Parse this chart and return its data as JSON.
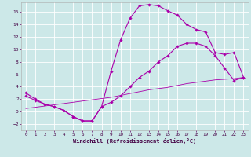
{
  "xlabel": "Windchill (Refroidissement éolien,°C)",
  "bg_color": "#cce8e8",
  "grid_color": "#ffffff",
  "line_color": "#aa00aa",
  "xlim": [
    -0.5,
    23.5
  ],
  "ylim": [
    -3.0,
    17.5
  ],
  "xticks": [
    0,
    1,
    2,
    3,
    4,
    5,
    6,
    7,
    8,
    9,
    10,
    11,
    12,
    13,
    14,
    15,
    16,
    17,
    18,
    19,
    20,
    21,
    22,
    23
  ],
  "yticks": [
    -2,
    0,
    2,
    4,
    6,
    8,
    10,
    12,
    14,
    16
  ],
  "line1_x": [
    0,
    1,
    2,
    3,
    4,
    5,
    6,
    7,
    8,
    9,
    10,
    11,
    12,
    13,
    14,
    15,
    16,
    17,
    18,
    19,
    20,
    21,
    22,
    23
  ],
  "line1_y": [
    3,
    2,
    1.2,
    0.8,
    0.2,
    -0.8,
    -1.5,
    -1.5,
    0.8,
    6.5,
    11.5,
    15.0,
    17.0,
    17.2,
    17.0,
    16.2,
    15.5,
    14.0,
    13.2,
    12.8,
    9.5,
    9.2,
    9.5,
    5.5
  ],
  "line2_x": [
    0,
    1,
    2,
    3,
    4,
    5,
    6,
    7,
    8,
    9,
    10,
    11,
    12,
    13,
    14,
    15,
    16,
    17,
    18,
    19,
    20,
    21,
    22,
    23
  ],
  "line2_y": [
    2.5,
    1.8,
    1.2,
    0.8,
    0.2,
    -0.8,
    -1.5,
    -1.5,
    0.8,
    1.5,
    2.5,
    4.0,
    5.5,
    6.5,
    8.0,
    9.0,
    10.5,
    11.0,
    11.0,
    10.5,
    9.0,
    7.0,
    5.0,
    5.5
  ],
  "line3_x": [
    0,
    1,
    2,
    3,
    4,
    5,
    6,
    7,
    8,
    9,
    10,
    11,
    12,
    13,
    14,
    15,
    16,
    17,
    18,
    19,
    20,
    21,
    22,
    23
  ],
  "line3_y": [
    0.5,
    0.7,
    0.9,
    1.1,
    1.3,
    1.5,
    1.7,
    1.9,
    2.1,
    2.3,
    2.6,
    2.9,
    3.2,
    3.5,
    3.7,
    3.9,
    4.2,
    4.5,
    4.7,
    4.9,
    5.1,
    5.2,
    5.3,
    5.5
  ]
}
